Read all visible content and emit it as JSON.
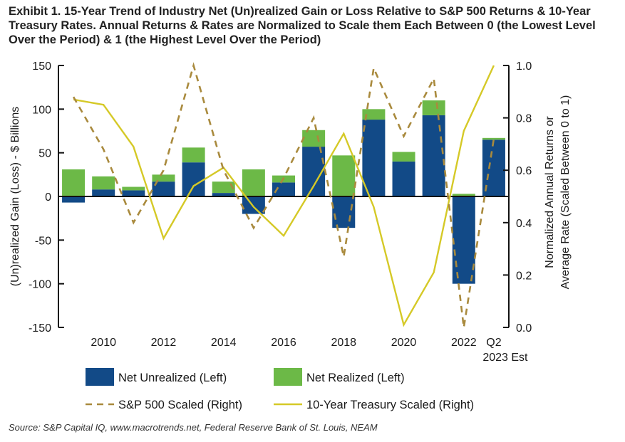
{
  "title": "Exhibit 1. 15-Year Trend of Industry Net (Un)realized Gain or Loss Relative to S&P 500 Returns & 10-Year Treasury Rates. Annual Returns & Rates are Normalized to Scale them Each Between 0 (the Lowest Level Over the Period) & 1 (the Highest Level Over the Period)",
  "source": "Source: S&P Capital IQ, www.macrotrends.net, Federal Reserve Bank of St. Louis, NEAM",
  "colors": {
    "unrealized": "#124a87",
    "realized": "#6cb947",
    "sp500": "#a98a3d",
    "treasury": "#d5c927"
  },
  "chart_data": {
    "type": "bar",
    "categories": [
      "2009",
      "2010",
      "2011",
      "2012",
      "2013",
      "2014",
      "2015",
      "2016",
      "2017",
      "2018",
      "2019",
      "2020",
      "2021",
      "2022",
      "Q2 2023 Est"
    ],
    "x_tick_labels": [
      "2010",
      "2012",
      "2014",
      "2016",
      "2018",
      "2020",
      "2022"
    ],
    "last_tick_label": [
      "Q2",
      "2023 Est"
    ],
    "stacked": true,
    "series": [
      {
        "name": "Net Unrealized (Left)",
        "axis": "left",
        "kind": "bar",
        "values": [
          -7,
          8,
          7,
          17,
          39,
          4,
          -20,
          16,
          57,
          -36,
          88,
          40,
          93,
          -100,
          65
        ]
      },
      {
        "name": "Net Realized (Left)",
        "axis": "left",
        "kind": "bar",
        "values": [
          31,
          15,
          4,
          8,
          17,
          13,
          31,
          8,
          19,
          47,
          12,
          11,
          17,
          3,
          2
        ]
      },
      {
        "name": "S&P 500 Scaled (Right)",
        "axis": "right",
        "kind": "line",
        "style": "dashed",
        "values": [
          0.88,
          0.68,
          0.4,
          0.6,
          1.0,
          0.6,
          0.38,
          0.57,
          0.8,
          0.27,
          0.99,
          0.73,
          0.95,
          0.0,
          0.72
        ]
      },
      {
        "name": "10-Year Treasury Scaled (Right)",
        "axis": "right",
        "kind": "line",
        "style": "solid",
        "values": [
          0.87,
          0.85,
          0.69,
          0.34,
          0.54,
          0.61,
          0.46,
          0.35,
          0.54,
          0.74,
          0.46,
          0.01,
          0.21,
          0.75,
          1.0
        ]
      }
    ],
    "ylabel_left": "(Un)realized Gain (Loss) - $ Billions",
    "ylabel_right": "Normalized Annual Returns or Average Rate (Scaled Between 0 to 1)",
    "ylabel_right_lines": [
      "Normalized Annual Returns or",
      "Average Rate (Scaled Between 0 to 1)"
    ],
    "ylim_left": [
      -150,
      150
    ],
    "yticks_left": [
      "150",
      "100",
      "50",
      "0",
      "-50",
      "-100",
      "-150"
    ],
    "ylim_right": [
      0,
      1
    ],
    "yticks_right": [
      "1.0",
      "0.8",
      "0.6",
      "0.4",
      "0.2",
      "0.0"
    ],
    "legend": [
      {
        "label": "Net Unrealized (Left)",
        "swatch": "box",
        "color": "#124a87"
      },
      {
        "label": "Net Realized (Left)",
        "swatch": "box",
        "color": "#6cb947"
      },
      {
        "label": "S&P 500 Scaled (Right)",
        "swatch": "dash",
        "color": "#a98a3d"
      },
      {
        "label": "10-Year Treasury Scaled (Right)",
        "swatch": "line",
        "color": "#d5c927"
      }
    ],
    "legend_position": "bottom"
  }
}
